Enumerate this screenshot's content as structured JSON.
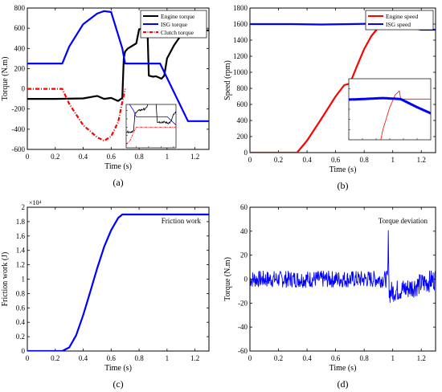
{
  "chart_data": [
    {
      "type": "line",
      "caption": "(a)",
      "xlabel": "Time  (s)",
      "ylabel": "Torque (N.m)",
      "xlim": [
        0,
        1.3
      ],
      "ylim": [
        -600,
        800
      ],
      "xticks": [
        0,
        0.2,
        0.4,
        0.6,
        0.8,
        1,
        1.2
      ],
      "xtick_labels": [
        "0",
        "0.2",
        "0.4",
        "0.6",
        "0.8",
        "1",
        "1.2"
      ],
      "yticks": [
        -600,
        -400,
        -200,
        0,
        200,
        400,
        600,
        800
      ],
      "ytick_labels": [
        "-600",
        "-400",
        "-200",
        "0",
        "200",
        "400",
        "600",
        "800"
      ],
      "legend_position": "top-right",
      "series": [
        {
          "name": "Engine torque",
          "color": "#000000",
          "style": "solid",
          "x": [
            0,
            0.2,
            0.4,
            0.5,
            0.55,
            0.6,
            0.65,
            0.68,
            0.69,
            0.7,
            0.72,
            0.78,
            0.8,
            0.83,
            0.86,
            0.87,
            0.9,
            0.92,
            0.96,
            0.98,
            1.0,
            1.05,
            1.1,
            1.15,
            1.2,
            1.3
          ],
          "y": [
            -100,
            -100,
            -95,
            -70,
            -100,
            -90,
            -120,
            -90,
            300,
            370,
            400,
            450,
            590,
            600,
            590,
            130,
            120,
            125,
            100,
            130,
            300,
            430,
            530,
            560,
            570,
            580
          ]
        },
        {
          "name": "ISG torque",
          "color": "#0000ff",
          "style": "solid",
          "x": [
            0,
            0.25,
            0.3,
            0.4,
            0.5,
            0.55,
            0.6,
            0.68,
            0.7,
            0.95,
            1.15,
            1.3
          ],
          "y": [
            250,
            250,
            420,
            640,
            745,
            770,
            760,
            400,
            250,
            250,
            -320,
            -320
          ]
        },
        {
          "name": "Clutch torque",
          "color": "#ff0000",
          "style": "dashdot",
          "x": [
            0,
            0.25,
            0.3,
            0.4,
            0.5,
            0.55,
            0.6,
            0.65,
            0.68,
            0.7
          ],
          "y": [
            0,
            0,
            -150,
            -360,
            -480,
            -515,
            -470,
            -330,
            -130,
            0
          ]
        }
      ]
    },
    {
      "type": "line",
      "caption": "(b)",
      "xlabel": "Time  (s)",
      "ylabel": "Speed (rpm)",
      "xlim": [
        0,
        1.3
      ],
      "ylim": [
        0,
        1800
      ],
      "xticks": [
        0,
        0.2,
        0.4,
        0.6,
        0.8,
        1,
        1.2
      ],
      "xtick_labels": [
        "0",
        "0.2",
        "0.4",
        "0.6",
        "0.8",
        "1",
        "1.2"
      ],
      "yticks": [
        0,
        200,
        400,
        600,
        800,
        1000,
        1200,
        1400,
        1600,
        1800
      ],
      "ytick_labels": [
        "0",
        "200",
        "400",
        "600",
        "800",
        "1000",
        "1200",
        "1400",
        "1600",
        "1800"
      ],
      "legend_position": "top-right",
      "series": [
        {
          "name": "Engine speed",
          "color": "#ff0000",
          "style": "solid",
          "x": [
            0,
            0.33,
            0.4,
            0.5,
            0.6,
            0.66,
            0.68,
            0.7,
            0.75,
            0.8,
            0.85,
            0.9,
            0.94,
            0.97,
            0.98
          ],
          "y": [
            0,
            0,
            150,
            420,
            700,
            840,
            850,
            860,
            1080,
            1290,
            1450,
            1560,
            1620,
            1640,
            1600
          ]
        },
        {
          "name": "ISG speed",
          "color": "#0000ff",
          "style": "solid",
          "x": [
            0,
            0.3,
            0.5,
            0.7,
            0.85,
            0.98,
            1.1,
            1.2,
            1.3
          ],
          "y": [
            1600,
            1600,
            1595,
            1600,
            1605,
            1600,
            1560,
            1530,
            1530
          ]
        }
      ]
    },
    {
      "type": "line",
      "caption": "(c)",
      "xlabel": "Time  (s)",
      "ylabel": "Friction work (J)",
      "axis_multiplier": "×10⁴",
      "xlim": [
        0,
        1.3
      ],
      "ylim": [
        0,
        2
      ],
      "xticks": [
        0,
        0.2,
        0.4,
        0.6,
        0.8,
        1,
        1.2
      ],
      "xtick_labels": [
        "0",
        "0.2",
        "0.4",
        "0.6",
        "0.8",
        "1",
        "1.2"
      ],
      "yticks": [
        0,
        0.2,
        0.4,
        0.6,
        0.8,
        1,
        1.2,
        1.4,
        1.6,
        1.8,
        2
      ],
      "ytick_labels": [
        "0",
        "0.2",
        "0.4",
        "0.6",
        "0.8",
        "1",
        "1.2",
        "1.4",
        "1.6",
        "1.8",
        "2"
      ],
      "legend_position": "top-right",
      "series": [
        {
          "name": "Friction work",
          "color": "#0000ff",
          "style": "solid",
          "x": [
            0,
            0.25,
            0.3,
            0.35,
            0.4,
            0.45,
            0.5,
            0.55,
            0.6,
            0.65,
            0.68,
            0.7,
            1.3
          ],
          "y": [
            0,
            0,
            0.05,
            0.22,
            0.5,
            0.82,
            1.15,
            1.45,
            1.68,
            1.85,
            1.9,
            1.9,
            1.9
          ]
        }
      ]
    },
    {
      "type": "line",
      "caption": "(d)",
      "xlabel": "Time  (s)",
      "ylabel": "Torque (N.m)",
      "xlim": [
        0,
        1.3
      ],
      "ylim": [
        -60,
        60
      ],
      "xticks": [
        0,
        0.2,
        0.4,
        0.6,
        0.8,
        1,
        1.2
      ],
      "xtick_labels": [
        "0",
        "0.2",
        "0.4",
        "0.6",
        "0.8",
        "1",
        "1.2"
      ],
      "yticks": [
        -60,
        -40,
        -20,
        0,
        20,
        40,
        60
      ],
      "ytick_labels": [
        "-60",
        "-40",
        "-20",
        "0",
        "20",
        "40",
        "60"
      ],
      "legend_position": "top-right",
      "series": [
        {
          "name": "Torque deviation",
          "color": "#0000ff",
          "style": "noise",
          "x": [
            0,
            0.2,
            0.4,
            0.6,
            0.8,
            0.965,
            0.97,
            0.975,
            1.0,
            1.1,
            1.2,
            1.3
          ],
          "y": [
            0,
            0,
            0,
            0,
            0,
            0,
            40,
            -12,
            -10,
            -8,
            -4,
            0
          ]
        }
      ]
    }
  ]
}
